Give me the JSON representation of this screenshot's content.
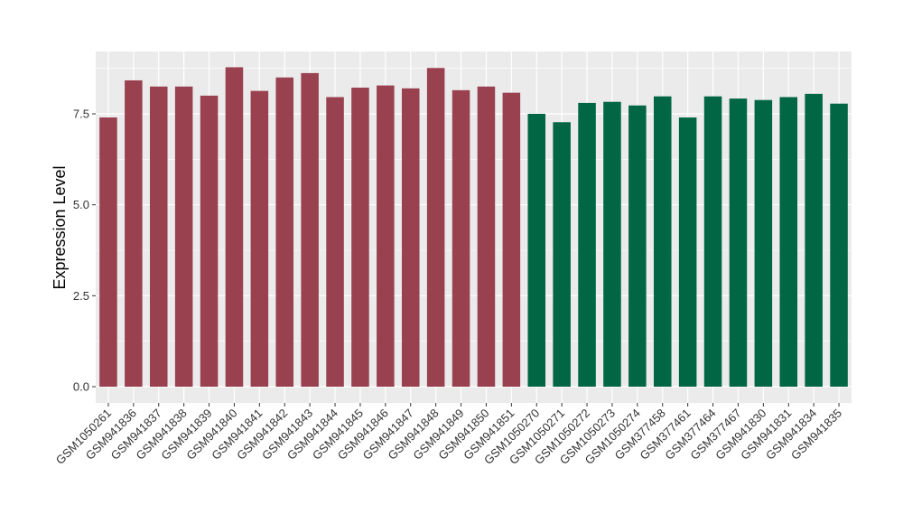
{
  "chart_data": {
    "type": "bar",
    "title": "",
    "xlabel": "",
    "ylabel": "Expression Level",
    "ylim": [
      0,
      9
    ],
    "yticks": [
      0.0,
      2.5,
      5.0,
      7.5
    ],
    "ytick_labels": [
      "0.0",
      "2.5",
      "5.0",
      "7.5"
    ],
    "grid": true,
    "legend": "none",
    "categories": [
      "GSM1050261",
      "GSM941836",
      "GSM941837",
      "GSM941838",
      "GSM941839",
      "GSM941840",
      "GSM941841",
      "GSM941842",
      "GSM941843",
      "GSM941844",
      "GSM941845",
      "GSM941846",
      "GSM941847",
      "GSM941848",
      "GSM941849",
      "GSM941850",
      "GSM941851",
      "GSM1050270",
      "GSM1050271",
      "GSM1050272",
      "GSM1050273",
      "GSM1050274",
      "GSM377458",
      "GSM377461",
      "GSM377464",
      "GSM377467",
      "GSM941830",
      "GSM941831",
      "GSM941834",
      "GSM941835"
    ],
    "values": [
      7.4,
      8.42,
      8.25,
      8.25,
      8.0,
      8.78,
      8.13,
      8.5,
      8.62,
      7.96,
      8.22,
      8.28,
      8.2,
      8.76,
      8.15,
      8.25,
      8.08,
      7.5,
      7.27,
      7.8,
      7.83,
      7.73,
      7.98,
      7.4,
      7.98,
      7.92,
      7.88,
      7.96,
      8.05,
      7.78
    ],
    "groups": [
      1,
      1,
      1,
      1,
      1,
      1,
      1,
      1,
      1,
      1,
      1,
      1,
      1,
      1,
      1,
      1,
      1,
      2,
      2,
      2,
      2,
      2,
      2,
      2,
      2,
      2,
      2,
      2,
      2,
      2
    ],
    "colors": {
      "group1": "#99414F",
      "group2": "#006644",
      "panel": "#EBEBEB",
      "grid": "#FFFFFF"
    }
  }
}
